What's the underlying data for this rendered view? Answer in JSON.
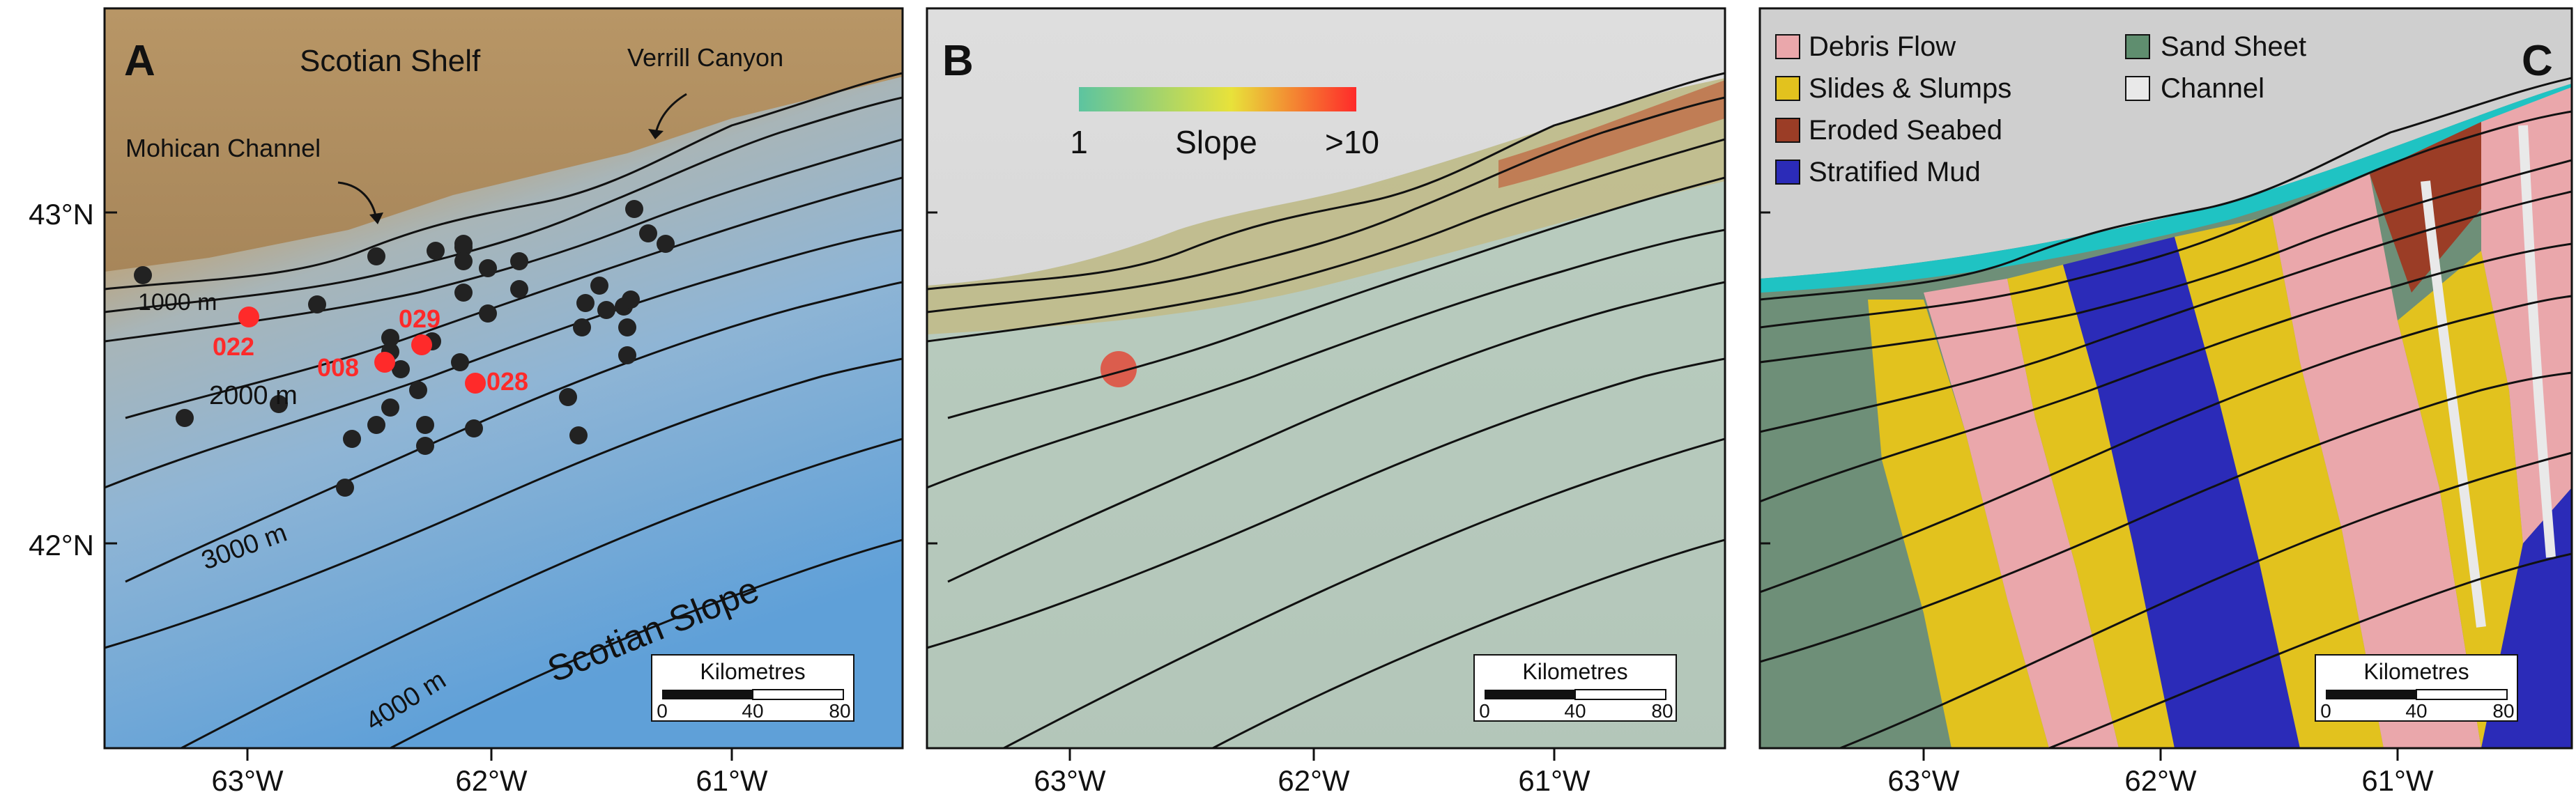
{
  "panels": [
    {
      "id": "A",
      "letter": "A",
      "region_labels": [
        {
          "key": "shelf",
          "text": "Scotian Shelf"
        },
        {
          "key": "slope",
          "text": "Scotian Slope"
        },
        {
          "key": "verrill",
          "text": "Verrill Canyon"
        },
        {
          "key": "mohican",
          "text": "Mohican Channel"
        }
      ],
      "contour_labels": [
        "1000 m",
        "2000 m",
        "3000 m",
        "4000 m"
      ],
      "highlighted_sites": [
        "022",
        "008",
        "029",
        "028"
      ],
      "site_color": "#ff2a2a",
      "sample_color": "#222222"
    },
    {
      "id": "B",
      "letter": "B",
      "slope_scale": {
        "min_label": "1",
        "title": "Slope",
        "max_label": ">10",
        "colors": [
          "#5cc4a0",
          "#e8e23a",
          "#ff2a2a"
        ]
      }
    },
    {
      "id": "C",
      "letter": "C",
      "legend": [
        {
          "label": "Debris Flow",
          "color": "#eaa7ab"
        },
        {
          "label": "Sand Sheet",
          "color": "#5f8e6f"
        },
        {
          "label": "Slides & Slumps",
          "color": "#e2c21e"
        },
        {
          "label": "Channel",
          "color": "#e9e9e9"
        },
        {
          "label": "Eroded Seabed",
          "color": "#9b3d26"
        },
        {
          "label": "Stratified Mud",
          "color": "#2b2bb8"
        }
      ],
      "shelf_edge_color": "#1fc3c3"
    }
  ],
  "axes": {
    "x_ticks": [
      "63°W",
      "62°W",
      "61°W"
    ],
    "y_ticks": [
      "43°N",
      "42°N"
    ]
  },
  "scale_bar": {
    "title": "Kilometres",
    "ticks": [
      "0",
      "40",
      "80"
    ]
  }
}
